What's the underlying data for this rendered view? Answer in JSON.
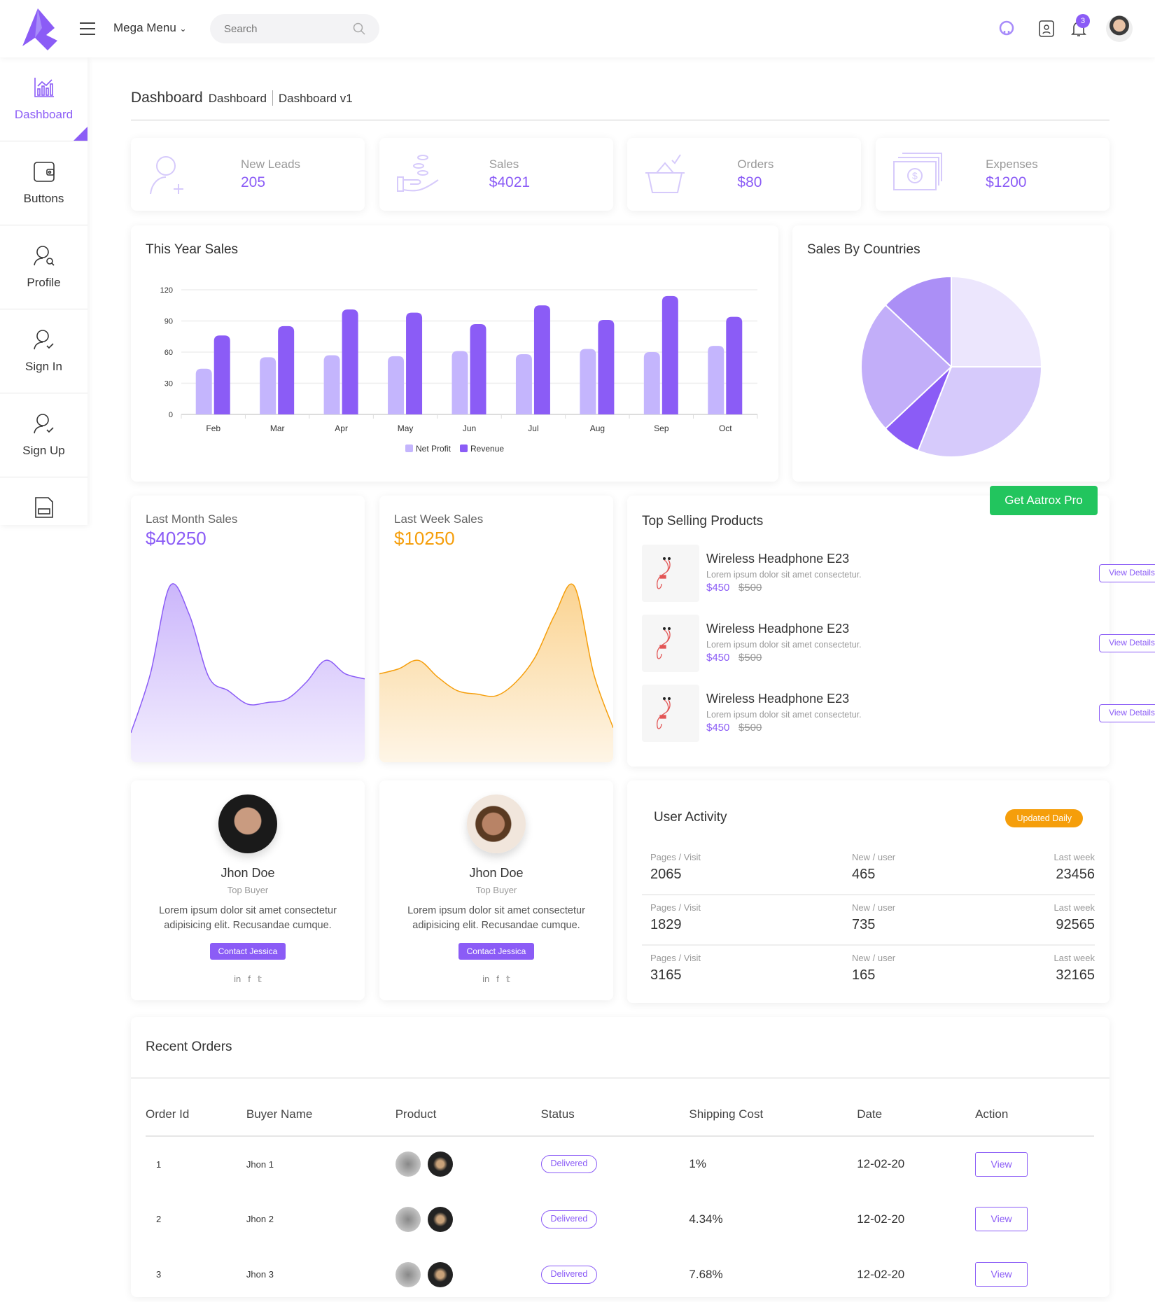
{
  "header": {
    "mega_menu": "Mega Menu",
    "search_placeholder": "Search",
    "notification_count": "3"
  },
  "sidebar": {
    "items": [
      {
        "label": "Dashboard",
        "icon": "chart-icon"
      },
      {
        "label": "Buttons",
        "icon": "wallet-icon"
      },
      {
        "label": "Profile",
        "icon": "user-search-icon"
      },
      {
        "label": "Sign In",
        "icon": "user-check-icon"
      },
      {
        "label": "Sign Up",
        "icon": "user-check-icon"
      },
      {
        "label": "",
        "icon": "doc-icon"
      }
    ]
  },
  "breadcrumb": {
    "title": "Dashboard",
    "items": [
      "Dashboard",
      "Dashboard v1"
    ]
  },
  "stats": [
    {
      "label": "New Leads",
      "value": "205",
      "icon": "user-plus-icon"
    },
    {
      "label": "Sales",
      "value": "$4021",
      "icon": "hand-coins-icon"
    },
    {
      "label": "Orders",
      "value": "$80",
      "icon": "basket-icon"
    },
    {
      "label": "Expenses",
      "value": "$1200",
      "icon": "money-icon"
    }
  ],
  "colors": {
    "accent": "#8b5cf6",
    "accent_light": "#c4b5fd",
    "green": "#22c55e",
    "orange": "#f59e0b"
  },
  "chart_data": [
    {
      "type": "bar",
      "title": "This Year Sales",
      "categories": [
        "Feb",
        "Mar",
        "Apr",
        "May",
        "Jun",
        "Jul",
        "Aug",
        "Sep",
        "Oct"
      ],
      "ylim": [
        0,
        120
      ],
      "yticks": [
        "0",
        "30",
        "60",
        "90",
        "120"
      ],
      "grid": true,
      "legend": "bottom",
      "series": [
        {
          "name": "Net Profit",
          "color": "#c4b5fd",
          "values": [
            44,
            55,
            57,
            56,
            61,
            58,
            63,
            60,
            66
          ]
        },
        {
          "name": "Revenue",
          "color": "#8b5cf6",
          "values": [
            76,
            85,
            101,
            98,
            87,
            105,
            91,
            114,
            94
          ]
        }
      ]
    },
    {
      "type": "pie",
      "title": "Sales By Countries",
      "values": [
        25,
        31,
        7,
        24,
        13
      ],
      "colors": [
        "#ece6fd",
        "#d6cafb",
        "#8b5cf6",
        "#c2aef9",
        "#ab8ff6"
      ]
    },
    {
      "type": "area",
      "title": "Last Month Sales",
      "value": "$40250",
      "color": "#8b5cf6",
      "values": [
        5,
        40,
        92,
        75,
        38,
        30,
        22,
        23,
        25,
        35,
        48,
        40,
        37
      ]
    },
    {
      "type": "area",
      "title": "Last Week Sales",
      "value": "$10250",
      "color": "#f59e0b",
      "values": [
        40,
        43,
        48,
        38,
        30,
        28,
        27,
        35,
        50,
        75,
        92,
        40,
        8
      ]
    }
  ],
  "top_products": {
    "title": "Top Selling Products",
    "cta": "Get Aatrox Pro",
    "items": [
      {
        "name": "Wireless Headphone E23",
        "desc": "Lorem ipsum dolor sit amet consectetur.",
        "price": "$450",
        "old_price": "$500",
        "button": "View Details"
      },
      {
        "name": "Wireless Headphone E23",
        "desc": "Lorem ipsum dolor sit amet consectetur.",
        "price": "$450",
        "old_price": "$500",
        "button": "View Details"
      },
      {
        "name": "Wireless Headphone E23",
        "desc": "Lorem ipsum dolor sit amet consectetur.",
        "price": "$450",
        "old_price": "$500",
        "button": "View Details"
      }
    ]
  },
  "people": [
    {
      "name": "Jhon Doe",
      "role": "Top Buyer",
      "text": "Lorem ipsum dolor sit amet consectetur adipisicing elit. Recusandae cumque.",
      "button": "Contact Jessica"
    },
    {
      "name": "Jhon Doe",
      "role": "Top Buyer",
      "text": "Lorem ipsum dolor sit amet consectetur adipisicing elit. Recusandae cumque.",
      "button": "Contact Jessica"
    }
  ],
  "user_activity": {
    "title": "User Activity",
    "badge": "Updated Daily",
    "rows": [
      {
        "pages_label": "Pages / Visit",
        "pages": "2065",
        "new_label": "New / user",
        "new": "465",
        "week_label": "Last week",
        "week": "23456"
      },
      {
        "pages_label": "Pages / Visit",
        "pages": "1829",
        "new_label": "New / user",
        "new": "735",
        "week_label": "Last week",
        "week": "92565"
      },
      {
        "pages_label": "Pages / Visit",
        "pages": "3165",
        "new_label": "New / user",
        "new": "165",
        "week_label": "Last week",
        "week": "32165"
      }
    ]
  },
  "orders": {
    "title": "Recent Orders",
    "columns": [
      "Order Id",
      "Buyer Name",
      "Product",
      "Status",
      "Shipping Cost",
      "Date",
      "Action"
    ],
    "rows": [
      {
        "id": "1",
        "buyer": "Jhon 1",
        "status": "Delivered",
        "shipping": "1%",
        "date": "12-02-20",
        "action": "View"
      },
      {
        "id": "2",
        "buyer": "Jhon 2",
        "status": "Delivered",
        "shipping": "4.34%",
        "date": "12-02-20",
        "action": "View"
      },
      {
        "id": "3",
        "buyer": "Jhon 3",
        "status": "Delivered",
        "shipping": "7.68%",
        "date": "12-02-20",
        "action": "View"
      }
    ]
  }
}
